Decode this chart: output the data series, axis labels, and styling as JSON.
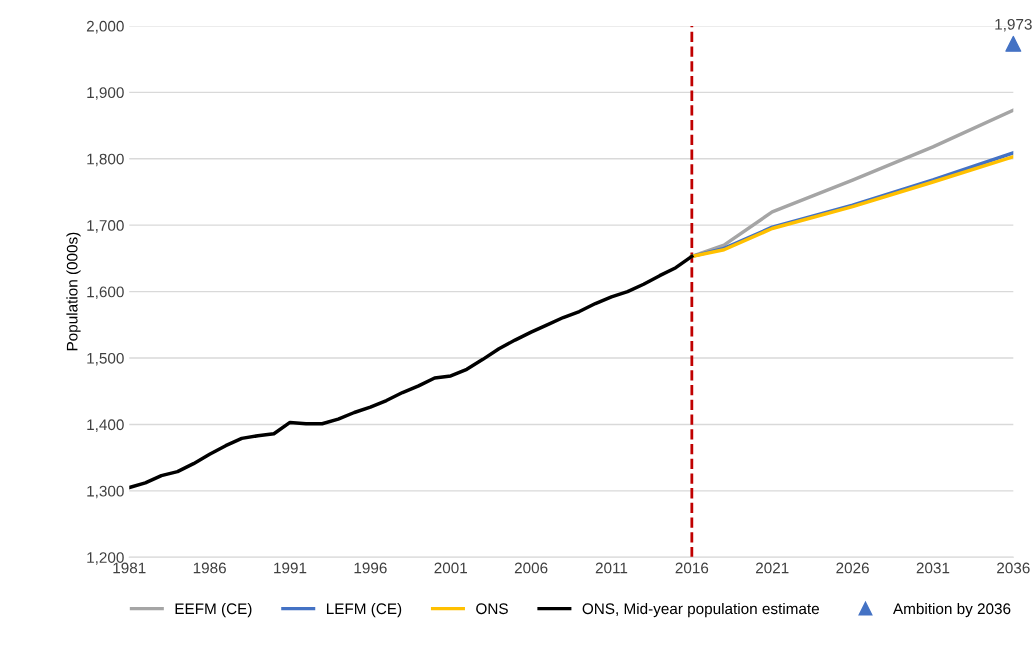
{
  "chart_data": {
    "type": "line",
    "ylabel": "Population (000s)",
    "xlim": [
      1981,
      2036
    ],
    "xticks": [
      1981,
      1986,
      1991,
      1996,
      2001,
      2006,
      2011,
      2016,
      2021,
      2026,
      2031,
      2036
    ],
    "ylim": [
      1200,
      2000
    ],
    "yticks": [
      {
        "value": 1200,
        "label": "1,200"
      },
      {
        "value": 1300,
        "label": "1,300"
      },
      {
        "value": 1400,
        "label": "1,400"
      },
      {
        "value": 1500,
        "label": "1,500"
      },
      {
        "value": 1600,
        "label": "1,600"
      },
      {
        "value": 1700,
        "label": "1,700"
      },
      {
        "value": 1800,
        "label": "1,800"
      },
      {
        "value": 1900,
        "label": "1,900"
      },
      {
        "value": 2000,
        "label": "2,000"
      }
    ],
    "grid": "y",
    "legend": "bottom",
    "marker": "none",
    "ref_lines": [
      {
        "axis": "x",
        "value": 2016,
        "color": "#c00000",
        "line_style": "dashed"
      }
    ],
    "series": [
      {
        "name": "EEFM (CE)",
        "color": "#a5a5a5",
        "x": [
          2016,
          2018,
          2021,
          2026,
          2031,
          2036
        ],
        "values": [
          1653,
          1670,
          1720,
          1768,
          1818,
          1873
        ]
      },
      {
        "name": "LEFM (CE)",
        "color": "#4472c4",
        "x": [
          2016,
          2018,
          2021,
          2026,
          2031,
          2036
        ],
        "values": [
          1653,
          1665,
          1697,
          1730,
          1768,
          1809
        ]
      },
      {
        "name": "ONS",
        "color": "#ffc000",
        "x": [
          2016,
          2018,
          2021,
          2026,
          2031,
          2036
        ],
        "values": [
          1653,
          1663,
          1695,
          1728,
          1765,
          1803
        ]
      },
      {
        "name": "ONS, Mid-year population estimate",
        "color": "#000000",
        "x": [
          1981,
          1982,
          1983,
          1984,
          1985,
          1986,
          1987,
          1988,
          1989,
          1990,
          1991,
          1992,
          1993,
          1994,
          1995,
          1996,
          1997,
          1998,
          1999,
          2000,
          2001,
          2002,
          2003,
          2004,
          2005,
          2006,
          2007,
          2008,
          2009,
          2010,
          2011,
          2012,
          2013,
          2014,
          2015,
          2016
        ],
        "values": [
          1305,
          1312,
          1323,
          1329,
          1341,
          1355,
          1368,
          1379,
          1383,
          1386,
          1403,
          1401,
          1401,
          1408,
          1418,
          1426,
          1436,
          1448,
          1458,
          1470,
          1473,
          1483,
          1498,
          1514,
          1527,
          1539,
          1550,
          1561,
          1570,
          1582,
          1592,
          1600,
          1611,
          1624,
          1636,
          1653
        ]
      },
      {
        "name": "Ambition by 2036",
        "type": "scatter",
        "marker": "triangle",
        "color": "#4472c4",
        "x": [
          2036
        ],
        "values": [
          1973
        ],
        "value_labels": [
          "1,973"
        ]
      }
    ]
  }
}
